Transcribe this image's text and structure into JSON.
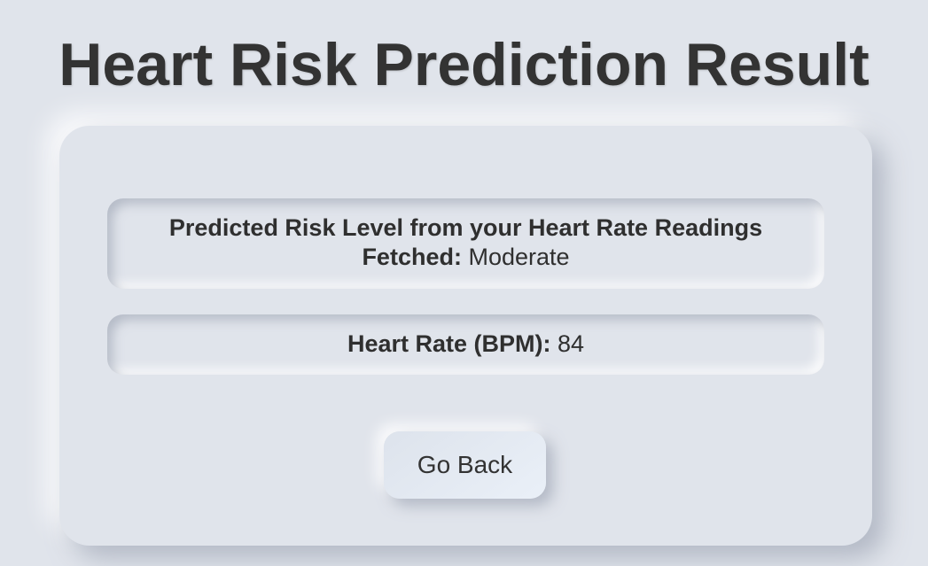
{
  "page": {
    "title": "Heart Risk Prediction Result"
  },
  "result": {
    "risk_label_line1": "Predicted Risk Level from your Heart Rate Readings",
    "risk_label_line2": "Fetched:",
    "risk_value": "Moderate",
    "heart_rate_label": "Heart Rate (BPM):",
    "heart_rate_value": "84"
  },
  "actions": {
    "go_back_label": "Go Back"
  },
  "colors": {
    "background": "#e0e4eb",
    "text": "#2f2f2f"
  }
}
